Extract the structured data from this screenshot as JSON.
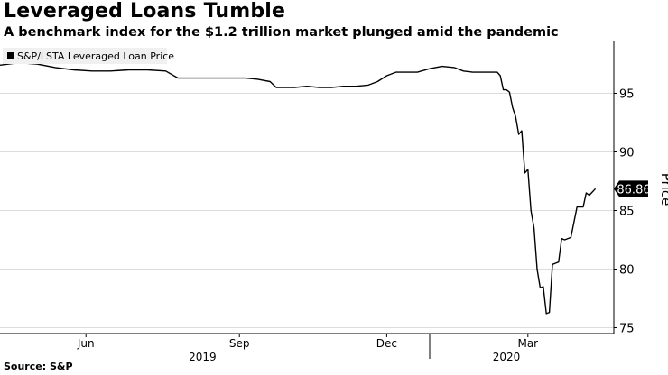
{
  "header": {
    "title": "Leveraged Loans Tumble",
    "subtitle": "A benchmark index for the $1.2 trillion market plunged amid the pandemic"
  },
  "footer": {
    "source": "Source: S&P"
  },
  "colors": {
    "line": "#000000",
    "grid": "#dcdcdc",
    "axis": "#000000",
    "value_badge_bg": "#000000",
    "value_badge_text": "#ffffff"
  },
  "chart_data": {
    "type": "line",
    "title": "",
    "legend": {
      "position": "top-left",
      "entries": [
        "S&P/LSTA Leveraged Loan Price"
      ]
    },
    "ylabel": "Price",
    "y_axis_side": "right",
    "ylim": [
      74.5,
      99.5
    ],
    "yticks": [
      75,
      80,
      85,
      90,
      95
    ],
    "ytick_labels": [
      "75",
      "80",
      "85",
      "90",
      "95"
    ],
    "grid": "horizontal",
    "x_ticks": [
      {
        "t": 0.14,
        "label": "Jun"
      },
      {
        "t": 0.39,
        "label": "Sep"
      },
      {
        "t": 0.63,
        "label": "Dec"
      },
      {
        "t": 0.86,
        "label": "Mar"
      }
    ],
    "year_labels": [
      {
        "t": 0.33,
        "label": "2019"
      },
      {
        "t": 0.825,
        "label": "2020"
      }
    ],
    "year_divider_t": 0.7,
    "last_value_label": "86.86",
    "series": [
      {
        "name": "S&P/LSTA Leveraged Loan Price",
        "points": [
          [
            0.0,
            97.4
          ],
          [
            0.03,
            97.6
          ],
          [
            0.06,
            97.5
          ],
          [
            0.09,
            97.2
          ],
          [
            0.12,
            97.0
          ],
          [
            0.15,
            96.9
          ],
          [
            0.18,
            96.9
          ],
          [
            0.21,
            97.0
          ],
          [
            0.24,
            97.0
          ],
          [
            0.27,
            96.9
          ],
          [
            0.29,
            96.3
          ],
          [
            0.31,
            96.3
          ],
          [
            0.34,
            96.3
          ],
          [
            0.37,
            96.3
          ],
          [
            0.4,
            96.3
          ],
          [
            0.42,
            96.2
          ],
          [
            0.44,
            96.0
          ],
          [
            0.45,
            95.5
          ],
          [
            0.48,
            95.5
          ],
          [
            0.5,
            95.6
          ],
          [
            0.52,
            95.5
          ],
          [
            0.54,
            95.5
          ],
          [
            0.56,
            95.6
          ],
          [
            0.58,
            95.6
          ],
          [
            0.6,
            95.7
          ],
          [
            0.615,
            96.0
          ],
          [
            0.63,
            96.5
          ],
          [
            0.645,
            96.8
          ],
          [
            0.66,
            96.8
          ],
          [
            0.68,
            96.8
          ],
          [
            0.7,
            97.1
          ],
          [
            0.72,
            97.3
          ],
          [
            0.74,
            97.2
          ],
          [
            0.755,
            96.9
          ],
          [
            0.77,
            96.8
          ],
          [
            0.79,
            96.8
          ],
          [
            0.81,
            96.8
          ],
          [
            0.815,
            96.5
          ],
          [
            0.82,
            95.3
          ],
          [
            0.825,
            95.3
          ],
          [
            0.83,
            95.1
          ],
          [
            0.835,
            93.8
          ],
          [
            0.84,
            93.0
          ],
          [
            0.845,
            91.5
          ],
          [
            0.85,
            91.8
          ],
          [
            0.855,
            88.2
          ],
          [
            0.86,
            88.5
          ],
          [
            0.865,
            85.0
          ],
          [
            0.87,
            83.5
          ],
          [
            0.875,
            80.0
          ],
          [
            0.88,
            78.4
          ],
          [
            0.885,
            78.5
          ],
          [
            0.89,
            76.2
          ],
          [
            0.895,
            76.3
          ],
          [
            0.9,
            80.4
          ],
          [
            0.905,
            80.5
          ],
          [
            0.91,
            80.6
          ],
          [
            0.915,
            82.6
          ],
          [
            0.92,
            82.5
          ],
          [
            0.93,
            82.7
          ],
          [
            0.94,
            85.3
          ],
          [
            0.95,
            85.3
          ],
          [
            0.955,
            86.5
          ],
          [
            0.96,
            86.3
          ],
          [
            0.97,
            86.86
          ]
        ]
      }
    ]
  }
}
